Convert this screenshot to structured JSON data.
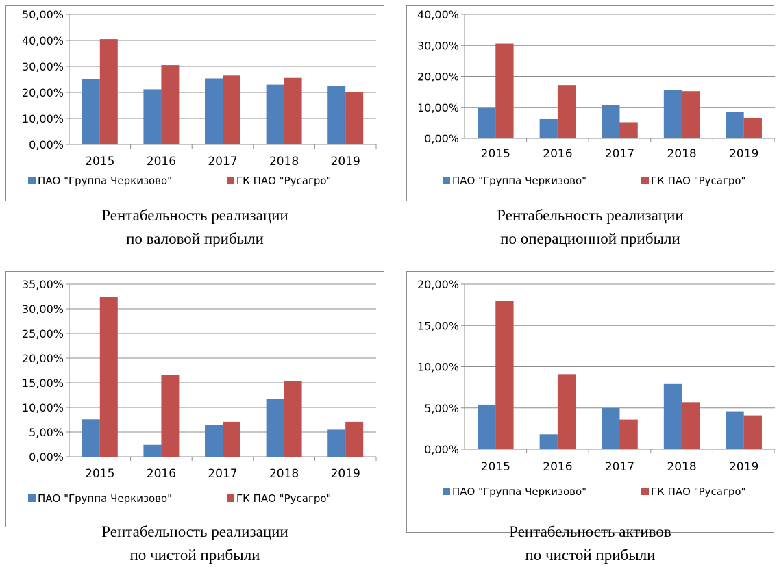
{
  "colors": {
    "series1": "#4f81bd",
    "series2": "#c0504d"
  },
  "chart_data": [
    {
      "type": "bar",
      "title": "",
      "categories": [
        "2015",
        "2016",
        "2017",
        "2018",
        "2019"
      ],
      "ylim": [
        0,
        0.5
      ],
      "yticks": [
        "0,00%",
        "10,00%",
        "20,00%",
        "30,00%",
        "40,00%",
        "50,00%"
      ],
      "ytick_values": [
        0,
        0.1,
        0.2,
        0.3,
        0.4,
        0.5
      ],
      "series": [
        {
          "name": "ПАО \"Группа Черкизово\"",
          "values": [
            0.252,
            0.212,
            0.254,
            0.23,
            0.226
          ]
        },
        {
          "name": "ГК ПАО \"Русагро\"",
          "values": [
            0.405,
            0.305,
            0.265,
            0.256,
            0.201
          ]
        }
      ],
      "legend": "bottom",
      "grid": true,
      "caption": [
        "Рентабельность реализации",
        "по валовой прибыли"
      ]
    },
    {
      "type": "bar",
      "title": "",
      "categories": [
        "2015",
        "2016",
        "2017",
        "2018",
        "2019"
      ],
      "ylim": [
        0,
        0.4
      ],
      "yticks": [
        "0,00%",
        "10,00%",
        "20,00%",
        "30,00%",
        "40,00%"
      ],
      "ytick_values": [
        0,
        0.1,
        0.2,
        0.3,
        0.4
      ],
      "series": [
        {
          "name": "ПАО \"Группа Черкизово\"",
          "values": [
            0.1,
            0.062,
            0.108,
            0.155,
            0.085
          ]
        },
        {
          "name": "ГК ПАО \"Русагро\"",
          "values": [
            0.306,
            0.172,
            0.052,
            0.152,
            0.066
          ]
        }
      ],
      "legend": "bottom",
      "grid": true,
      "caption": [
        "Рентабельность реализации",
        "по операционной прибыли"
      ]
    },
    {
      "type": "bar",
      "title": "",
      "categories": [
        "2015",
        "2016",
        "2017",
        "2018",
        "2019"
      ],
      "ylim": [
        0,
        0.35
      ],
      "yticks": [
        "0,00%",
        "5,00%",
        "10,00%",
        "15,00%",
        "20,00%",
        "25,00%",
        "30,00%",
        "35,00%"
      ],
      "ytick_values": [
        0,
        0.05,
        0.1,
        0.15,
        0.2,
        0.25,
        0.3,
        0.35
      ],
      "series": [
        {
          "name": "ПАО \"Группа Черкизово\"",
          "values": [
            0.076,
            0.024,
            0.065,
            0.117,
            0.055
          ]
        },
        {
          "name": "ГК ПАО \"Русагро\"",
          "values": [
            0.324,
            0.166,
            0.071,
            0.154,
            0.071
          ]
        }
      ],
      "legend": "bottom",
      "grid": true,
      "caption": [
        "Рентабельность реализации",
        "по чистой прибыли"
      ]
    },
    {
      "type": "bar",
      "title": "",
      "categories": [
        "2015",
        "2016",
        "2017",
        "2018",
        "2019"
      ],
      "ylim": [
        0,
        0.2
      ],
      "yticks": [
        "0,00%",
        "5,00%",
        "10,00%",
        "15,00%",
        "20,00%"
      ],
      "ytick_values": [
        0,
        0.05,
        0.1,
        0.15,
        0.2
      ],
      "series": [
        {
          "name": "ПАО \"Группа Черкизово\"",
          "values": [
            0.054,
            0.018,
            0.05,
            0.079,
            0.046
          ]
        },
        {
          "name": "ГК ПАО \"Русагро\"",
          "values": [
            0.18,
            0.091,
            0.036,
            0.057,
            0.041
          ]
        }
      ],
      "legend": "bottom",
      "grid": true,
      "caption": [
        "Рентабельность активов",
        "по чистой прибыли"
      ]
    }
  ]
}
